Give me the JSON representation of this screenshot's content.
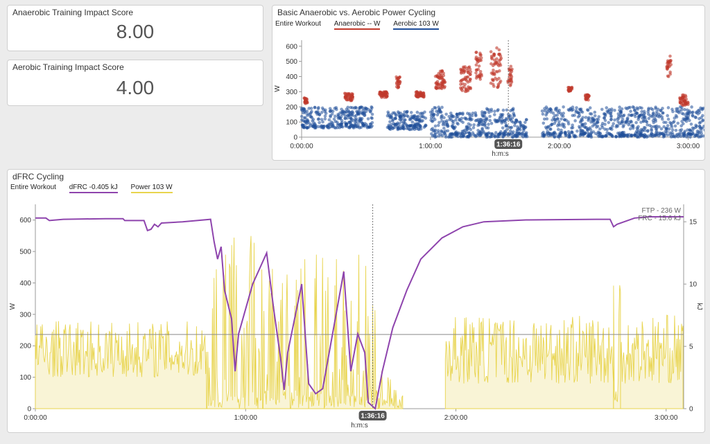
{
  "panels": {
    "anaerobic_score": {
      "title": "Anaerobic Training Impact Score",
      "value": "8.00"
    },
    "aerobic_score": {
      "title": "Aerobic Training Impact Score",
      "value": "4.00"
    },
    "power_chart": {
      "title": "Basic Anaerobic vs. Aerobic Power Cycling",
      "scope": "Entire Workout",
      "legend": [
        {
          "label": "Anaerobic  -- W",
          "color": "#c0392b"
        },
        {
          "label": "Aerobic  103 W",
          "color": "#1f4e99"
        }
      ]
    },
    "dfrc_chart": {
      "title": "dFRC Cycling",
      "scope": "Entire Workout",
      "legend": [
        {
          "label": "dFRC  -0.405 kJ",
          "color": "#8e44ad"
        },
        {
          "label": "Power  103 W",
          "color": "#e8d44d"
        }
      ]
    }
  },
  "chart_data": [
    {
      "type": "scatter",
      "title": "Basic Anaerobic vs. Aerobic Power Cycling",
      "xlabel": "h:m:s",
      "ylabel": "W",
      "xlim": [
        0,
        185
      ],
      "ylim": [
        0,
        640
      ],
      "x_unit": "minutes",
      "xticks": [
        {
          "v": 0,
          "label": "0:00:00"
        },
        {
          "v": 60,
          "label": "1:00:00"
        },
        {
          "v": 120,
          "label": "2:00:00"
        },
        {
          "v": 180,
          "label": "3:00:00"
        }
      ],
      "yticks": [
        0,
        100,
        200,
        300,
        400,
        500,
        600
      ],
      "cursor": {
        "x": 96.27,
        "label": "1:36:16"
      },
      "series": [
        {
          "name": "Aerobic",
          "color": "#1f4e99",
          "segments": [
            [
              0,
              33,
              60,
              200
            ],
            [
              40,
              58,
              50,
              170
            ],
            [
              60,
              66,
              0,
              200
            ],
            [
              66,
              80,
              0,
              160
            ],
            [
              80,
              100,
              0,
              190
            ],
            [
              100,
              105,
              0,
              120
            ],
            [
              112,
              190,
              0,
              200
            ]
          ]
        },
        {
          "name": "Anaerobic",
          "color": "#c0392b",
          "clusters": [
            [
              1,
              3,
              220,
              260
            ],
            [
              20,
              24,
              240,
              290
            ],
            [
              36,
              40,
              260,
              300
            ],
            [
              44,
              46,
              320,
              400
            ],
            [
              53,
              57,
              260,
              300
            ],
            [
              62,
              67,
              320,
              440
            ],
            [
              74,
              79,
              300,
              470
            ],
            [
              81,
              84,
              380,
              560
            ],
            [
              88,
              93,
              320,
              600
            ],
            [
              96,
              98,
              340,
              480
            ],
            [
              124,
              126,
              300,
              330
            ],
            [
              132,
              134,
              240,
              280
            ],
            [
              170,
              172,
              400,
              540
            ],
            [
              176,
              180,
              210,
              280
            ]
          ]
        }
      ]
    },
    {
      "type": "line",
      "title": "dFRC Cycling",
      "xlabel": "h:m:s",
      "ylabel": "W",
      "y2label": "kJ",
      "xlim": [
        0,
        185
      ],
      "ylim": [
        0,
        650
      ],
      "y2lim": [
        0,
        16.4
      ],
      "xticks": [
        {
          "v": 0,
          "label": "0:00:00"
        },
        {
          "v": 60,
          "label": "1:00:00"
        },
        {
          "v": 120,
          "label": "2:00:00"
        },
        {
          "v": 180,
          "label": "3:00:00"
        }
      ],
      "yticks": [
        0,
        100,
        200,
        300,
        400,
        500,
        600
      ],
      "y2ticks": [
        0,
        5,
        10,
        15
      ],
      "cursor": {
        "x": 96.27,
        "label": "1:36:16"
      },
      "annotations": [
        "FTP - 236 W",
        "FRC - 15.6 kJ"
      ],
      "ftp_line": 236,
      "series": [
        {
          "name": "dFRC",
          "color": "#8e44ad",
          "axis": "right",
          "points": [
            [
              0,
              15.3
            ],
            [
              3,
              15.3
            ],
            [
              4,
              15.1
            ],
            [
              8,
              15.2
            ],
            [
              20,
              15.25
            ],
            [
              25,
              15.25
            ],
            [
              25.5,
              15.1
            ],
            [
              31,
              15.1
            ],
            [
              32,
              14.3
            ],
            [
              33,
              14.4
            ],
            [
              34,
              14.8
            ],
            [
              35,
              14.6
            ],
            [
              36,
              14.9
            ],
            [
              42,
              15.0
            ],
            [
              50,
              15.2
            ],
            [
              51,
              13.4
            ],
            [
              52,
              12.0
            ],
            [
              53,
              13.0
            ],
            [
              54,
              9.5
            ],
            [
              56,
              7.2
            ],
            [
              57,
              3.0
            ],
            [
              58,
              6.0
            ],
            [
              62,
              10.0
            ],
            [
              66,
              12.5
            ],
            [
              68,
              8.0
            ],
            [
              70,
              4.0
            ],
            [
              71,
              1.5
            ],
            [
              72,
              4.5
            ],
            [
              76,
              10.0
            ],
            [
              78,
              2.0
            ],
            [
              80,
              1.2
            ],
            [
              82,
              1.6
            ],
            [
              88,
              11.0
            ],
            [
              90,
              3.0
            ],
            [
              92,
              6.0
            ],
            [
              94,
              4.5
            ],
            [
              95,
              0.5
            ],
            [
              97,
              0.0
            ],
            [
              99,
              3.0
            ],
            [
              102,
              6.5
            ],
            [
              106,
              9.5
            ],
            [
              110,
              12.0
            ],
            [
              116,
              13.7
            ],
            [
              122,
              14.6
            ],
            [
              128,
              15.0
            ],
            [
              140,
              15.15
            ],
            [
              160,
              15.2
            ],
            [
              164,
              15.2
            ],
            [
              165,
              14.6
            ],
            [
              166,
              14.8
            ],
            [
              168,
              15.0
            ],
            [
              171,
              15.3
            ],
            [
              175,
              15.4
            ],
            [
              185,
              15.4
            ]
          ]
        },
        {
          "name": "Power",
          "color": "#e8d44d",
          "axis": "left",
          "segments": [
            [
              0,
              49,
              100,
              280
            ],
            [
              49,
              65,
              0,
              580
            ],
            [
              65,
              78,
              0,
              480
            ],
            [
              78,
              98,
              0,
              560
            ],
            [
              98,
              105,
              0,
              120
            ],
            [
              117,
              165,
              80,
              300
            ],
            [
              165,
              167,
              0,
              550
            ],
            [
              167,
              185,
              80,
              300
            ]
          ]
        }
      ]
    }
  ]
}
